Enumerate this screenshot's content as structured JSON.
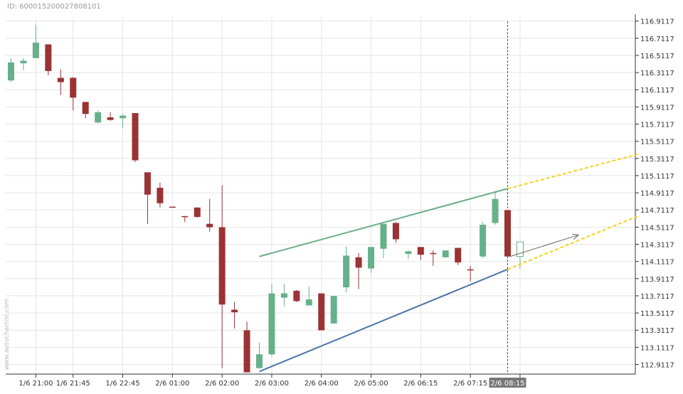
{
  "header": {
    "id_text": "ID: 600015200027808101"
  },
  "watermark": "www.autochartist.com",
  "colors": {
    "up": "#66b08a",
    "down": "#9b3234",
    "resistance": "#6aae88",
    "support": "#4a74a8",
    "forecast": "#f2d31b",
    "grid": "#e4e4e4",
    "axis": "#333333",
    "hover_label_bg": "#777777"
  },
  "chart_data": {
    "type": "candlestick",
    "y_ticks": [
      "116.9117",
      "116.7117",
      "116.5117",
      "116.3117",
      "116.1117",
      "115.9117",
      "115.7117",
      "115.5117",
      "115.3117",
      "115.1117",
      "114.9117",
      "114.7117",
      "114.5117",
      "114.3117",
      "114.1117",
      "113.9117",
      "113.7117",
      "113.5117",
      "113.3117",
      "113.1117",
      "112.9117"
    ],
    "ylim": [
      112.8,
      116.95
    ],
    "x_labels": [
      {
        "i": 2,
        "text": "1/6 21:00"
      },
      {
        "i": 5,
        "text": "1/6 21:45"
      },
      {
        "i": 9,
        "text": "1/6 22:45"
      },
      {
        "i": 13,
        "text": "2/6 01:00"
      },
      {
        "i": 17,
        "text": "2/6 02:00"
      },
      {
        "i": 21,
        "text": "2/6 03:00"
      },
      {
        "i": 25,
        "text": "2/6 04:00"
      },
      {
        "i": 29,
        "text": "2/6 05:00"
      },
      {
        "i": 33,
        "text": "2/6 06:15"
      },
      {
        "i": 37,
        "text": "2/6 07:15"
      },
      {
        "i": 41,
        "text": "15"
      }
    ],
    "hover_label": {
      "i": 40,
      "text": "2/6 08:15"
    },
    "candles": [
      {
        "o": 116.22,
        "h": 116.48,
        "l": 116.2,
        "c": 116.43
      },
      {
        "o": 116.42,
        "h": 116.48,
        "l": 116.34,
        "c": 116.45
      },
      {
        "o": 116.48,
        "h": 116.87,
        "l": 116.48,
        "c": 116.66
      },
      {
        "o": 116.64,
        "h": 116.64,
        "l": 116.28,
        "c": 116.33
      },
      {
        "o": 116.25,
        "h": 116.35,
        "l": 116.05,
        "c": 116.2
      },
      {
        "o": 116.25,
        "h": 116.26,
        "l": 115.87,
        "c": 116.02
      },
      {
        "o": 115.97,
        "h": 115.97,
        "l": 115.78,
        "c": 115.83
      },
      {
        "o": 115.73,
        "h": 115.87,
        "l": 115.72,
        "c": 115.85
      },
      {
        "o": 115.79,
        "h": 115.85,
        "l": 115.75,
        "c": 115.76
      },
      {
        "o": 115.78,
        "h": 115.83,
        "l": 115.66,
        "c": 115.81
      },
      {
        "o": 115.84,
        "h": 115.84,
        "l": 115.27,
        "c": 115.29
      },
      {
        "o": 115.15,
        "h": 115.15,
        "l": 114.55,
        "c": 114.89
      },
      {
        "o": 114.97,
        "h": 115.03,
        "l": 114.74,
        "c": 114.79
      },
      {
        "o": 114.75,
        "h": 114.75,
        "l": 114.74,
        "c": 114.74
      },
      {
        "o": 114.64,
        "h": 114.64,
        "l": 114.57,
        "c": 114.63
      },
      {
        "o": 114.74,
        "h": 114.74,
        "l": 114.62,
        "c": 114.63
      },
      {
        "o": 114.55,
        "h": 114.84,
        "l": 114.46,
        "c": 114.51
      },
      {
        "o": 114.51,
        "h": 115.0,
        "l": 112.87,
        "c": 113.61
      },
      {
        "o": 113.55,
        "h": 113.64,
        "l": 113.33,
        "c": 113.52
      },
      {
        "o": 113.31,
        "h": 113.41,
        "l": 112.82,
        "c": 112.82
      },
      {
        "o": 112.87,
        "h": 113.17,
        "l": 112.86,
        "c": 113.03
      },
      {
        "o": 113.03,
        "h": 113.85,
        "l": 113.01,
        "c": 113.74
      },
      {
        "o": 113.69,
        "h": 113.85,
        "l": 113.59,
        "c": 113.74
      },
      {
        "o": 113.77,
        "h": 113.78,
        "l": 113.64,
        "c": 113.65
      },
      {
        "o": 113.6,
        "h": 113.82,
        "l": 113.6,
        "c": 113.67
      },
      {
        "o": 113.74,
        "h": 113.74,
        "l": 113.31,
        "c": 113.31
      },
      {
        "o": 113.39,
        "h": 113.71,
        "l": 113.39,
        "c": 113.71
      },
      {
        "o": 113.81,
        "h": 114.29,
        "l": 113.75,
        "c": 114.18
      },
      {
        "o": 114.16,
        "h": 114.21,
        "l": 113.79,
        "c": 114.04
      },
      {
        "o": 114.03,
        "h": 114.28,
        "l": 113.98,
        "c": 114.28
      },
      {
        "o": 114.26,
        "h": 114.55,
        "l": 114.15,
        "c": 114.55
      },
      {
        "o": 114.56,
        "h": 114.57,
        "l": 114.33,
        "c": 114.37
      },
      {
        "o": 114.2,
        "h": 114.24,
        "l": 114.14,
        "c": 114.23
      },
      {
        "o": 114.28,
        "h": 114.28,
        "l": 114.13,
        "c": 114.19
      },
      {
        "o": 114.21,
        "h": 114.24,
        "l": 114.06,
        "c": 114.2
      },
      {
        "o": 114.16,
        "h": 114.24,
        "l": 114.16,
        "c": 114.24
      },
      {
        "o": 114.27,
        "h": 114.27,
        "l": 114.07,
        "c": 114.1
      },
      {
        "o": 114.02,
        "h": 114.06,
        "l": 113.88,
        "c": 114.01
      },
      {
        "o": 114.17,
        "h": 114.57,
        "l": 114.15,
        "c": 114.54
      },
      {
        "o": 114.56,
        "h": 114.93,
        "l": 114.54,
        "c": 114.84
      },
      {
        "o": 114.71,
        "h": 114.71,
        "l": 114.16,
        "c": 114.17
      },
      {
        "o": 114.17,
        "h": 114.34,
        "l": 114.03,
        "c": 114.34
      }
    ],
    "hollow_index": 41,
    "resistance_line": {
      "from": {
        "i": 20,
        "y": 114.17
      },
      "to": {
        "i": 40,
        "y": 114.96
      }
    },
    "support_line": {
      "from": {
        "i": 20,
        "y": 112.83
      },
      "to": {
        "i": 40,
        "y": 114.02
      }
    },
    "forecast_upper": {
      "from": {
        "i": 40,
        "y": 114.96
      },
      "to": {
        "i": 50.5,
        "y": 115.36
      }
    },
    "forecast_lower": {
      "from": {
        "i": 40,
        "y": 114.02
      },
      "to": {
        "i": 50.5,
        "y": 114.64
      }
    },
    "arrow": {
      "from": {
        "i": 40.2,
        "y": 114.17
      },
      "to": {
        "i": 45.7,
        "y": 114.42
      }
    },
    "vertical_marker_index": 40
  }
}
